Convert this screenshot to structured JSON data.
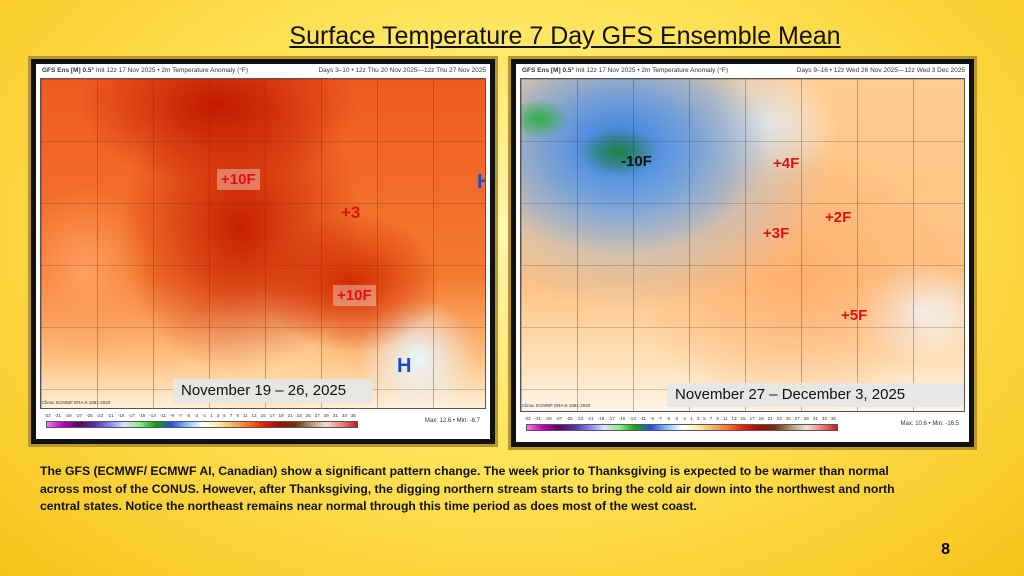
{
  "title": "Surface Temperature 7 Day GFS Ensemble Mean",
  "left_map": {
    "model": "GFS Ens [M] 0.5°",
    "info": "Init 12z 17 Nov 2025 • 2m Temperature Anomaly (°F)",
    "range": "Days 3–10 • 12z Thu 20 Nov 2025—12z Thu 27 Nov 2025",
    "date_label": "November 19 – 26, 2025",
    "max_min": "Max: 12.6 • Min: -6.7",
    "clim": "Clima: ECMWF ERA-5 1991-2020",
    "annotations": [
      "+10F",
      "+3",
      "+10F"
    ],
    "pressure_labels": [
      "H",
      "H"
    ]
  },
  "right_map": {
    "model": "GFS Ens [M] 0.5°",
    "info": "Init 12z 17 Nov 2025 • 2m Temperature Anomaly (°F)",
    "range": "Days 9–16 • 12z Wed 26 Nov 2025—12z Wed 3 Dec 2025",
    "date_label": "November 27 – December 3, 2025",
    "max_min": "Max: 10.6 • Min: -16.5",
    "clim": "Clima: ECMWF ERA-5 1991-2020",
    "annotations": [
      "-10F",
      "+4F",
      "+2F",
      "+3F",
      "+5F"
    ]
  },
  "colorbar_ticks": [
    "-33",
    "-31",
    "-29",
    "-27",
    "-25",
    "-23",
    "-21",
    "-19",
    "-17",
    "-15",
    "-13",
    "-11",
    "-9",
    "-7",
    "-5",
    "-3",
    "-1",
    "1",
    "3",
    "5",
    "7",
    "9",
    "11",
    "13",
    "15",
    "17",
    "19",
    "21",
    "23",
    "25",
    "27",
    "29",
    "31",
    "33",
    "35"
  ],
  "body": "The GFS (ECMWF/ ECMWF AI, Canadian) show a significant pattern change.  The week prior to Thanksgiving is expected to be warmer than normal across most of the CONUS. However, after Thanksgiving, the digging northern stream starts to bring the cold air down into the northwest and north central states.  Notice the northeast remains near normal through this time period as does most of the west coast.",
  "page_number": "8"
}
